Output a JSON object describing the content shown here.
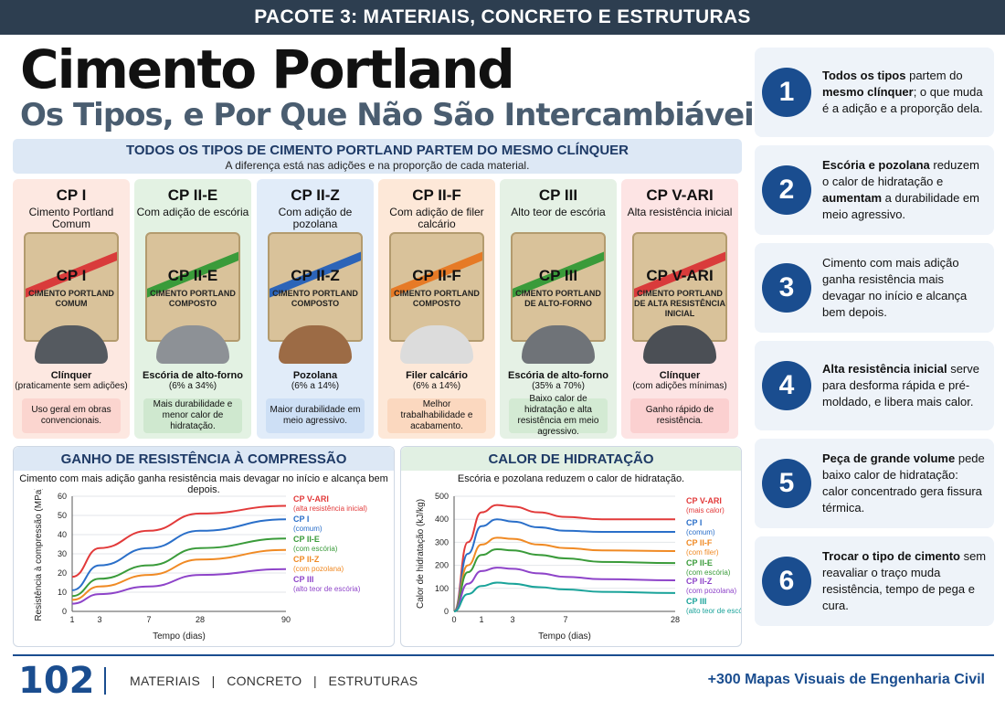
{
  "header": {
    "banner": "PACOTE 3: MATERIAIS, CONCRETO E ESTRUTURAS",
    "title": "Cimento Portland",
    "subtitle": "Os Tipos, e Por Que Não São Intercambiáveis"
  },
  "band": {
    "heading": "TODOS OS TIPOS DE CIMENTO PORTLAND PARTEM DO MESMO CLÍNQUER",
    "sub": "A diferença está nas adições e na proporção de cada material."
  },
  "types": [
    {
      "code": "CP I",
      "name": "Cimento Portland Comum",
      "bag_code": "CP I",
      "bag_text": "CIMENTO PORTLAND COMUM",
      "material": "Clínquer",
      "material_detail": "(praticamente sem adições)",
      "note": "Uso geral em obras convencionais.",
      "bg": "#fde8e1",
      "stripe": "#d93b3b",
      "pile": "#555a60",
      "note_bg": "#fbd5cf"
    },
    {
      "code": "CP II-E",
      "name": "Com adição de escória",
      "bag_code": "CP II-E",
      "bag_text": "CIMENTO PORTLAND COMPOSTO",
      "material": "Escória de alto-forno",
      "material_detail": "(6% a 34%)",
      "note": "Mais durabilidade e menor calor de hidratação.",
      "bg": "#e3f2e3",
      "stripe": "#3a9b3a",
      "pile": "#8d9196",
      "note_bg": "#cfe8cf"
    },
    {
      "code": "CP II-Z",
      "name": "Com adição de pozolana",
      "bag_code": "CP II-Z",
      "bag_text": "CIMENTO PORTLAND COMPOSTO",
      "material": "Pozolana",
      "material_detail": "(6% a 14%)",
      "note": "Maior durabilidade em meio agressivo.",
      "bg": "#e1ecf9",
      "stripe": "#2c64b8",
      "pile": "#9c6b45",
      "note_bg": "#cddff5"
    },
    {
      "code": "CP II-F",
      "name": "Com adição de filer calcário",
      "bag_code": "CP II-F",
      "bag_text": "CIMENTO PORTLAND COMPOSTO",
      "material": "Filer calcário",
      "material_detail": "(6% a 14%)",
      "note": "Melhor trabalhabilidade e acabamento.",
      "bg": "#fde8d8",
      "stripe": "#e67a26",
      "pile": "#dcdcdc",
      "note_bg": "#fbd8bf"
    },
    {
      "code": "CP III",
      "name": "Alto teor de escória",
      "bag_code": "CP III",
      "bag_text": "CIMENTO PORTLAND DE ALTO-FORNO",
      "material": "Escória de alto-forno",
      "material_detail": "(35% a 70%)",
      "note": "Baixo calor de hidratação e alta resistência em meio agressivo.",
      "bg": "#e5f1e5",
      "stripe": "#3a9b3a",
      "pile": "#6f7378",
      "note_bg": "#d3ead3"
    },
    {
      "code": "CP V-ARI",
      "name": "Alta resistência inicial",
      "bag_code": "CP V-ARI",
      "bag_text": "CIMENTO PORTLAND DE ALTA RESISTÊNCIA INICIAL",
      "material": "Clínquer",
      "material_detail": "(com adições mínimas)",
      "note": "Ganho rápido de resistência.",
      "bg": "#fde4e4",
      "stripe": "#d93b3b",
      "pile": "#4b4f55",
      "note_bg": "#fbd0d0"
    }
  ],
  "chart_data": [
    {
      "type": "line",
      "title": "GANHO DE RESISTÊNCIA À COMPRESSÃO",
      "subtitle": "Cimento com mais adição ganha resistência mais devagar no início e alcança bem depois.",
      "xlabel": "Tempo (dias)",
      "ylabel": "Resistência à compressão (MPa)",
      "x": [
        1,
        3,
        7,
        28,
        90
      ],
      "xticks": [
        "1",
        "3",
        "7",
        "28",
        "90"
      ],
      "ylim": [
        0,
        60
      ],
      "yticks": [
        0,
        10,
        20,
        30,
        40,
        50,
        60
      ],
      "series": [
        {
          "name": "CP V-ARI",
          "label": "(alta resistência inicial)",
          "color": "#e23a3a",
          "values": [
            18,
            33,
            42,
            51,
            55
          ]
        },
        {
          "name": "CP I",
          "label": "(comum)",
          "color": "#2a6fc9",
          "values": [
            11,
            24,
            33,
            42,
            48
          ]
        },
        {
          "name": "CP II-E",
          "label": "(com escória)",
          "color": "#3a9b3a",
          "values": [
            8,
            17,
            24,
            33,
            38
          ]
        },
        {
          "name": "CP II-Z",
          "label": "(com pozolana)",
          "color": "#f08a24",
          "values": [
            6,
            13,
            19,
            27,
            32
          ]
        },
        {
          "name": "CP III",
          "label": "(alto teor de escória)",
          "color": "#8e44c9",
          "values": [
            4,
            9,
            13,
            19,
            22
          ]
        }
      ]
    },
    {
      "type": "line",
      "title": "CALOR DE HIDRATAÇÃO",
      "subtitle": "Escória e pozolana reduzem o calor de hidratação.",
      "xlabel": "Tempo (dias)",
      "ylabel": "Calor de hidratação (kJ/kg)",
      "x": [
        0,
        0.5,
        1,
        2,
        3,
        5,
        7,
        14,
        28
      ],
      "xticks": [
        "0",
        "1",
        "3",
        "7",
        "28"
      ],
      "ylim": [
        0,
        500
      ],
      "yticks": [
        0,
        100,
        200,
        300,
        400,
        500
      ],
      "series": [
        {
          "name": "CP V-ARI",
          "label": "(mais calor)",
          "color": "#e23a3a",
          "values": [
            0,
            300,
            430,
            462,
            455,
            430,
            410,
            400,
            400
          ]
        },
        {
          "name": "CP I",
          "label": "(comum)",
          "color": "#2a6fc9",
          "values": [
            0,
            250,
            370,
            400,
            390,
            365,
            350,
            345,
            345
          ]
        },
        {
          "name": "CP II-F",
          "label": "(com filer)",
          "color": "#f08a24",
          "values": [
            0,
            200,
            290,
            320,
            315,
            290,
            275,
            265,
            262
          ]
        },
        {
          "name": "CP II-E",
          "label": "(com escória)",
          "color": "#3a9b3a",
          "values": [
            0,
            170,
            245,
            270,
            265,
            245,
            230,
            215,
            210
          ]
        },
        {
          "name": "CP II-Z",
          "label": "(com pozolana)",
          "color": "#8e44c9",
          "values": [
            0,
            120,
            175,
            190,
            185,
            165,
            150,
            140,
            135
          ]
        },
        {
          "name": "CP III",
          "label": "(alto teor de escória)",
          "color": "#1aa39a",
          "values": [
            0,
            75,
            110,
            125,
            120,
            105,
            95,
            85,
            80
          ]
        }
      ]
    }
  ],
  "points": [
    {
      "n": "1",
      "b1": "Todos os tipos",
      "t1": " partem do ",
      "b2": "mesmo clínquer",
      "t2": "; o que muda é a adição e a proporção dela."
    },
    {
      "n": "2",
      "b1": "Escória e pozolana",
      "t1": " reduzem o calor de hidratação e ",
      "b2": "aumentam",
      "t2": " a durabilidade em meio agressivo."
    },
    {
      "n": "3",
      "b1": "",
      "t1": "Cimento com mais adição ganha resistência mais devagar no início e alcança bem depois.",
      "b2": "",
      "t2": ""
    },
    {
      "n": "4",
      "b1": "Alta resistência inicial",
      "t1": " serve para desforma rápida e pré-moldado, e libera mais calor.",
      "b2": "",
      "t2": ""
    },
    {
      "n": "5",
      "b1": "Peça de grande volume",
      "t1": " pede baixo calor de hidratação: calor concentrado gera fissura térmica.",
      "b2": "",
      "t2": ""
    },
    {
      "n": "6",
      "b1": "Trocar o tipo de cimento",
      "t1": " sem reavaliar o traço muda resistência, tempo de pega e cura.",
      "b2": "",
      "t2": ""
    }
  ],
  "footer": {
    "page": "102",
    "nav": "MATERIAIS   |   CONCRETO   |   ESTRUTURAS",
    "right": "+300 Mapas Visuais de Engenharia Civil"
  }
}
